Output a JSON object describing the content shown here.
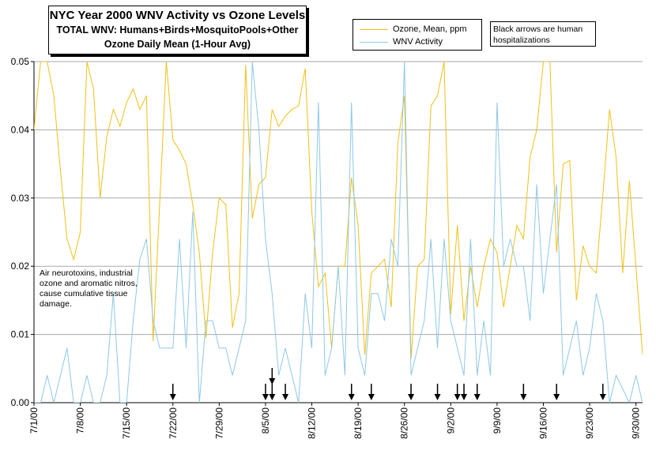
{
  "title_box": {
    "line1": "NYC Year 2000 WNV Activity vs Ozone Levels",
    "line2": "TOTAL WNV: Humans+Birds+MosquitoPools+Other",
    "line3": "Ozone Daily Mean (1-Hour Avg)"
  },
  "note_box": {
    "text": "Black arrows are human hospitalizations"
  },
  "annotation": {
    "text": "Air neurotoxins, industrial ozone and aromatic nitros, cause cumulative tissue damage."
  },
  "colors": {
    "ozone": "#f2c016",
    "wnv": "#8ec8e8",
    "grid": "#a9a9a9",
    "arrow": "#000000"
  },
  "chart_data": {
    "type": "line",
    "x_start": "7/1/00",
    "x_end": "9/30/00",
    "x_tick_labels": [
      "7/1/00",
      "7/8/00",
      "7/15/00",
      "7/22/00",
      "7/29/00",
      "8/5/00",
      "8/12/00",
      "8/19/00",
      "8/26/00",
      "9/2/00",
      "9/9/00",
      "9/16/00",
      "9/23/00",
      "9/30/00"
    ],
    "ylim": [
      0,
      0.05
    ],
    "y_tick_labels": [
      "0.00",
      "0.01",
      "0.02",
      "0.03",
      "0.04",
      "0.05"
    ],
    "grid": true,
    "legend_position": "top",
    "series": [
      {
        "name": "Ozone, Mean, ppm",
        "color": "#f2c016",
        "values": [
          0.04,
          0.051,
          0.052,
          0.045,
          0.034,
          0.024,
          0.021,
          0.025,
          0.051,
          0.046,
          0.03,
          0.039,
          0.043,
          0.0405,
          0.044,
          0.046,
          0.043,
          0.045,
          0.009,
          0.029,
          0.05,
          0.0385,
          0.037,
          0.035,
          0.029,
          0.022,
          0.0095,
          0.022,
          0.03,
          0.029,
          0.011,
          0.016,
          0.0495,
          0.027,
          0.032,
          0.033,
          0.043,
          0.0405,
          0.042,
          0.043,
          0.0435,
          0.049,
          0.028,
          0.017,
          0.019,
          0.008,
          0.02,
          0.02,
          0.033,
          0.026,
          0.007,
          0.019,
          0.02,
          0.021,
          0.014,
          0.038,
          0.045,
          0.0065,
          0.02,
          0.021,
          0.0435,
          0.045,
          0.051,
          0.013,
          0.026,
          0.012,
          0.02,
          0.014,
          0.02,
          0.024,
          0.022,
          0.014,
          0.02,
          0.026,
          0.024,
          0.036,
          0.04,
          0.051,
          0.05,
          0.022,
          0.035,
          0.0355,
          0.015,
          0.023,
          0.02,
          0.019,
          0.0305,
          0.043,
          0.036,
          0.019,
          0.0325,
          0.02,
          0.007
        ]
      },
      {
        "name": "WNV Activity",
        "color": "#8ec8e8",
        "values": [
          0,
          0,
          0.004,
          0,
          0.004,
          0.008,
          0,
          0,
          0.004,
          0,
          0,
          0.004,
          0.016,
          0,
          0,
          0.012,
          0.021,
          0.024,
          0.012,
          0.008,
          0.008,
          0.008,
          0.024,
          0.008,
          0.028,
          0,
          0.012,
          0.012,
          0.008,
          0.008,
          0.004,
          0.008,
          0.012,
          0.052,
          0.04,
          0.024,
          0.016,
          0.004,
          0.008,
          0.004,
          0,
          0.016,
          0.008,
          0.044,
          0.004,
          0.008,
          0.02,
          0.004,
          0.044,
          0.008,
          0.004,
          0.016,
          0.016,
          0.012,
          0.024,
          0.02,
          0.056,
          0.004,
          0.008,
          0.012,
          0.024,
          0.008,
          0.024,
          0.012,
          0.008,
          0.004,
          0.024,
          0.004,
          0.012,
          0.004,
          0.044,
          0.02,
          0.024,
          0.02,
          0.02,
          0.012,
          0.032,
          0.016,
          0.024,
          0.032,
          0.004,
          0.008,
          0.012,
          0.004,
          0.008,
          0.016,
          0.012,
          0,
          0.004,
          0.002,
          0,
          0.004,
          0
        ]
      }
    ],
    "hospitalization_arrows_day_index": [
      21,
      35,
      36,
      38,
      48,
      51,
      57,
      61,
      64,
      65,
      67,
      74,
      79,
      86
    ]
  }
}
